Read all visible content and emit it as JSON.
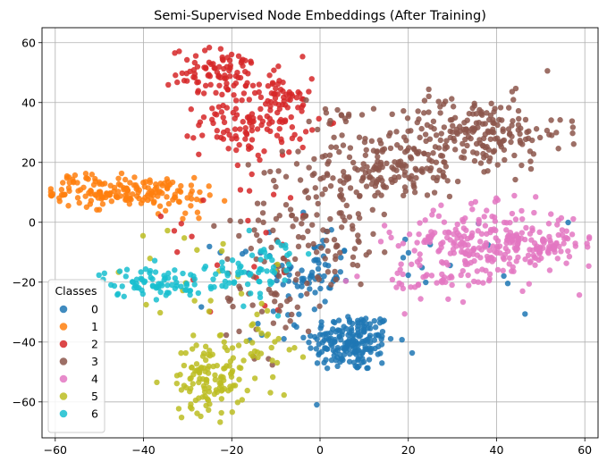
{
  "chart_data": {
    "type": "scatter",
    "title": "Semi-Supervised Node Embeddings (After Training)",
    "xlabel": "",
    "ylabel": "",
    "xlim": [
      -63,
      63
    ],
    "ylim": [
      -72,
      65
    ],
    "xticks": [
      -60,
      -40,
      -20,
      0,
      20,
      40,
      60
    ],
    "yticks": [
      -60,
      -40,
      -20,
      0,
      20,
      40,
      60
    ],
    "grid": true,
    "legend": {
      "title": "Classes",
      "position": "lower-left"
    },
    "series": [
      {
        "name": "0",
        "color": "#1f77b4",
        "clusters": [
          {
            "cx": 7,
            "cy": -40,
            "sx": 5,
            "sy": 5,
            "n": 190
          },
          {
            "cx": -1,
            "cy": -17,
            "sx": 4,
            "sy": 6,
            "n": 45
          },
          {
            "cx": -12,
            "cy": -20,
            "sx": 6,
            "sy": 10,
            "n": 25
          },
          {
            "cx": 25,
            "cy": -15,
            "sx": 20,
            "sy": 15,
            "n": 20
          }
        ]
      },
      {
        "name": "1",
        "color": "#ff7f0e",
        "clusters": [
          {
            "cx": -44,
            "cy": 10,
            "sx": 8,
            "sy": 2.5,
            "n": 150
          },
          {
            "cx": -56,
            "cy": 13,
            "sx": 2,
            "sy": 1.5,
            "n": 18
          },
          {
            "cx": -28,
            "cy": 6,
            "sx": 3,
            "sy": 3,
            "n": 15
          }
        ]
      },
      {
        "name": "2",
        "color": "#d62728",
        "clusters": [
          {
            "cx": -22,
            "cy": 50,
            "sx": 6,
            "sy": 4,
            "n": 90
          },
          {
            "cx": -15,
            "cy": 34,
            "sx": 6,
            "sy": 6,
            "n": 120
          },
          {
            "cx": -8,
            "cy": 40,
            "sx": 3,
            "sy": 5,
            "n": 30
          },
          {
            "cx": -20,
            "cy": -5,
            "sx": 15,
            "sy": 15,
            "n": 25
          }
        ]
      },
      {
        "name": "3",
        "color": "#8c564b",
        "clusters": [
          {
            "cx": 35,
            "cy": 30,
            "sx": 10,
            "sy": 6,
            "n": 210
          },
          {
            "cx": 15,
            "cy": 18,
            "sx": 10,
            "sy": 5,
            "n": 150
          },
          {
            "cx": 0,
            "cy": 0,
            "sx": 9,
            "sy": 9,
            "n": 110
          },
          {
            "cx": -10,
            "cy": -25,
            "sx": 6,
            "sy": 10,
            "n": 50
          },
          {
            "cx": 3,
            "cy": 36,
            "sx": 3,
            "sy": 3,
            "n": 15
          }
        ]
      },
      {
        "name": "4",
        "color": "#e377c2",
        "clusters": [
          {
            "cx": 38,
            "cy": -7,
            "sx": 10,
            "sy": 6,
            "n": 260
          },
          {
            "cx": 52,
            "cy": -8,
            "sx": 3,
            "sy": 3,
            "n": 40
          },
          {
            "cx": 25,
            "cy": -20,
            "sx": 5,
            "sy": 4,
            "n": 30
          }
        ]
      },
      {
        "name": "5",
        "color": "#bcbd22",
        "clusters": [
          {
            "cx": -25,
            "cy": -52,
            "sx": 4,
            "sy": 6,
            "n": 120
          },
          {
            "cx": -14,
            "cy": -38,
            "sx": 4,
            "sy": 8,
            "n": 30
          },
          {
            "cx": -25,
            "cy": -20,
            "sx": 10,
            "sy": 10,
            "n": 20
          }
        ]
      },
      {
        "name": "6",
        "color": "#17becf",
        "clusters": [
          {
            "cx": -38,
            "cy": -20,
            "sx": 6,
            "sy": 2.5,
            "n": 75
          },
          {
            "cx": -16,
            "cy": -18,
            "sx": 5,
            "sy": 5,
            "n": 50
          },
          {
            "cx": -10,
            "cy": -12,
            "sx": 3,
            "sy": 5,
            "n": 15
          }
        ]
      }
    ]
  }
}
